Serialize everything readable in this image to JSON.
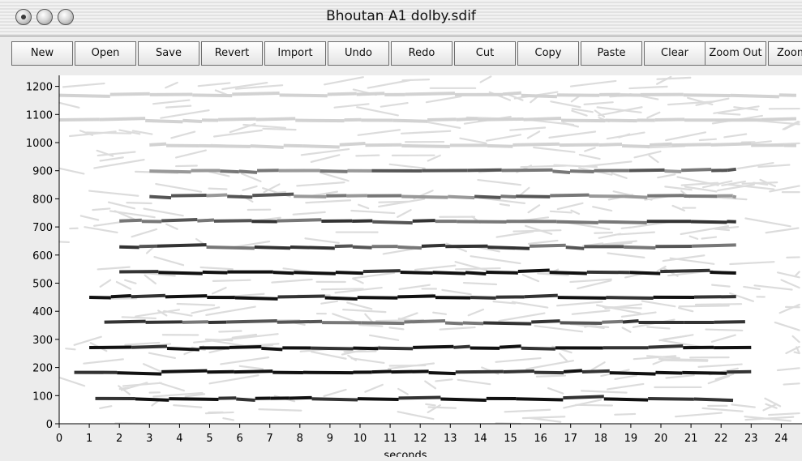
{
  "window": {
    "title": "Bhoutan A1 dolby.sdif",
    "controls": [
      "close",
      "minimize",
      "zoom"
    ]
  },
  "toolbar": {
    "buttons": [
      "New",
      "Open",
      "Save",
      "Revert",
      "Import",
      "Undo",
      "Redo",
      "Cut",
      "Copy",
      "Paste",
      "Clear",
      "Zoom Out",
      "Zoom"
    ]
  },
  "chart_data": {
    "type": "scatter",
    "xlabel": "seconds",
    "ylabel": "",
    "xlim": [
      0,
      24.6
    ],
    "ylim": [
      0,
      1250
    ],
    "x_ticks": [
      0,
      1,
      2,
      3,
      4,
      5,
      6,
      7,
      8,
      9,
      10,
      11,
      12,
      13,
      14,
      15,
      16,
      17,
      18,
      19,
      20,
      21,
      22,
      23,
      24
    ],
    "y_ticks": [
      0,
      100,
      200,
      300,
      400,
      500,
      600,
      700,
      800,
      900,
      1000,
      1100,
      1200
    ],
    "series": [
      {
        "partial": 1,
        "freq": 90,
        "x": [
          1.2,
          22.4
        ],
        "intensity": "dark"
      },
      {
        "partial": 2,
        "freq": 183,
        "x": [
          0.5,
          23.0
        ],
        "intensity": "dark"
      },
      {
        "partial": 3,
        "freq": 270,
        "x": [
          1.0,
          23.0
        ],
        "intensity": "dark"
      },
      {
        "partial": 4,
        "freq": 360,
        "x": [
          1.5,
          22.8
        ],
        "intensity": "medium"
      },
      {
        "partial": 5,
        "freq": 450,
        "x": [
          1.0,
          22.5
        ],
        "intensity": "dark"
      },
      {
        "partial": 6,
        "freq": 540,
        "x": [
          2.0,
          22.5
        ],
        "intensity": "dark"
      },
      {
        "partial": 7,
        "freq": 630,
        "x": [
          2.0,
          22.5
        ],
        "intensity": "medium"
      },
      {
        "partial": 8,
        "freq": 720,
        "x": [
          2.0,
          22.5
        ],
        "intensity": "medium"
      },
      {
        "partial": 9,
        "freq": 810,
        "x": [
          3.0,
          22.5
        ],
        "intensity": "light"
      },
      {
        "partial": 10,
        "freq": 900,
        "x": [
          3.0,
          22.5
        ],
        "intensity": "light"
      },
      {
        "partial": 11,
        "freq": 990,
        "x": [
          3.0,
          24.5
        ],
        "intensity": "faint"
      },
      {
        "partial": 12,
        "freq": 1080,
        "x": [
          0.0,
          24.5
        ],
        "intensity": "faint"
      },
      {
        "partial": 13,
        "freq": 1170,
        "x": [
          0.0,
          24.5
        ],
        "intensity": "faint"
      }
    ],
    "colors": {
      "dark": "#111111",
      "medium": "#555555",
      "light": "#8a8a8a",
      "faint": "#d2d2d2"
    }
  }
}
